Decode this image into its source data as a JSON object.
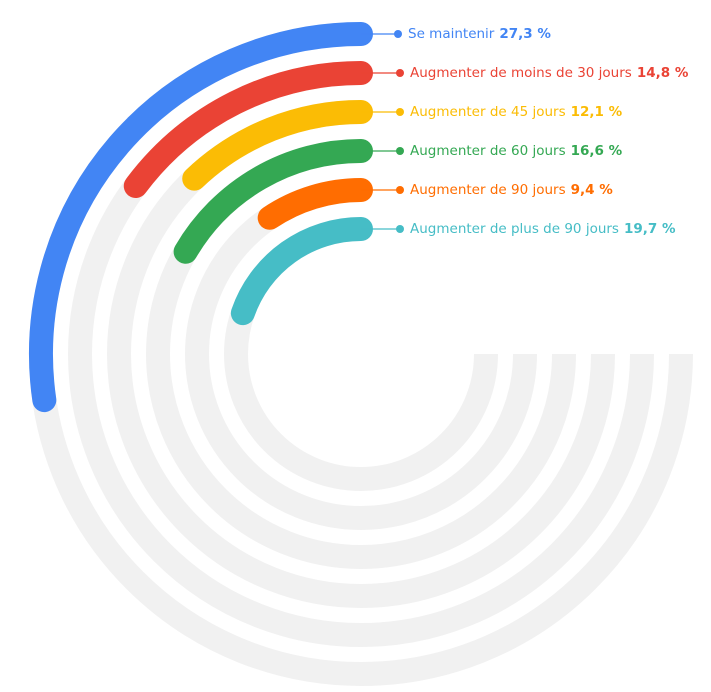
{
  "chart_data": {
    "type": "radial-bar",
    "categories": [
      "Se maintenir",
      "Augmenter de moins de 30 jours",
      "Augmenter de 45 jours",
      "Augmenter de 60 jours",
      "Augmenter de 90 jours",
      "Augmenter de plus de 90 jours"
    ],
    "values": [
      27.3,
      14.8,
      12.1,
      16.6,
      9.4,
      19.7
    ],
    "value_labels": [
      "27,3 %",
      "14,8 %",
      "12,1 %",
      "16,6 %",
      "9,4 %",
      "19,7 %"
    ],
    "colors": [
      "#4285f4",
      "#ea4335",
      "#fbbc05",
      "#34a853",
      "#ff6d01",
      "#46bdc6"
    ]
  }
}
